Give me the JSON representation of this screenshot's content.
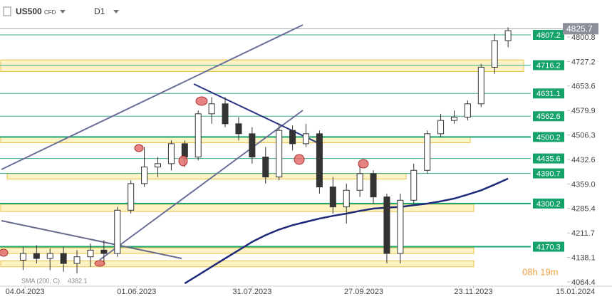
{
  "header": {
    "symbol": "US500",
    "instrument_type": "CFD",
    "timeframe": "D1"
  },
  "countdown": "08h 19m",
  "chart_data": {
    "type": "candlestick",
    "x": [
      "03.04.2023",
      "10.04.2023",
      "17.04.2023",
      "24.04.2023",
      "01.05.2023",
      "08.05.2023",
      "15.05.2023",
      "22.05.2023",
      "29.05.2023",
      "05.06.2023",
      "12.06.2023",
      "19.06.2023",
      "26.06.2023",
      "03.07.2023",
      "10.07.2023",
      "17.07.2023",
      "24.07.2023",
      "31.07.2023",
      "07.08.2023",
      "14.08.2023",
      "21.08.2023",
      "28.08.2023",
      "04.09.2023",
      "11.09.2023",
      "18.09.2023",
      "25.09.2023",
      "02.10.2023",
      "09.10.2023",
      "16.10.2023",
      "23.10.2023",
      "30.10.2023",
      "06.11.2023",
      "13.11.2023",
      "20.11.2023",
      "27.11.2023",
      "04.12.2023",
      "11.12.2023"
    ],
    "open": [
      4130,
      4150,
      4135,
      4150,
      4120,
      4140,
      4160,
      4150,
      4280,
      4360,
      4410,
      4420,
      4480,
      4440,
      4570,
      4600,
      4540,
      4510,
      4440,
      4380,
      4520,
      4480,
      4510,
      4350,
      4290,
      4340,
      4390,
      4320,
      4150,
      4310,
      4400,
      4510,
      4550,
      4560,
      4600,
      4710,
      4790
    ],
    "high": [
      4170,
      4175,
      4165,
      4170,
      4160,
      4180,
      4190,
      4290,
      4370,
      4470,
      4440,
      4490,
      4490,
      4580,
      4620,
      4620,
      4560,
      4530,
      4470,
      4540,
      4535,
      4540,
      4520,
      4380,
      4360,
      4420,
      4400,
      4330,
      4330,
      4420,
      4520,
      4570,
      4580,
      4610,
      4720,
      4810,
      4830
    ],
    "low": [
      4100,
      4120,
      4100,
      4095,
      4090,
      4110,
      4120,
      4140,
      4270,
      4350,
      4380,
      4400,
      4410,
      4430,
      4540,
      4530,
      4490,
      4420,
      4360,
      4370,
      4460,
      4470,
      4330,
      4270,
      4240,
      4320,
      4300,
      4120,
      4120,
      4300,
      4390,
      4500,
      4540,
      4550,
      4590,
      4690,
      4770
    ],
    "close": [
      4150,
      4135,
      4150,
      4120,
      4140,
      4160,
      4150,
      4280,
      4360,
      4410,
      4420,
      4480,
      4440,
      4570,
      4600,
      4540,
      4510,
      4440,
      4380,
      4520,
      4480,
      4510,
      4350,
      4290,
      4340,
      4390,
      4320,
      4150,
      4310,
      4400,
      4510,
      4550,
      4560,
      4600,
      4710,
      4790,
      4820
    ],
    "sma": {
      "name": "SMA (200, C)",
      "value_label": "4382.1",
      "color": "#1f2a7a",
      "values": [
        null,
        null,
        null,
        null,
        null,
        null,
        null,
        null,
        null,
        null,
        null,
        null,
        4060,
        4085,
        4110,
        4135,
        4160,
        4185,
        4205,
        4222,
        4235,
        4245,
        4255,
        4263,
        4270,
        4278,
        4285,
        4288,
        4290,
        4295,
        4300,
        4307,
        4315,
        4327,
        4340,
        4357,
        4375
      ]
    },
    "levels": [
      4807.2,
      4716.2,
      4631.1,
      4562.6,
      4500.2,
      4435.6,
      4390.7,
      4300.2,
      4170.3
    ],
    "last_price": 4825.7,
    "zones": [
      [
        4697,
        4732
      ],
      [
        4483,
        4500
      ],
      [
        4374,
        4391
      ],
      [
        4276,
        4298
      ],
      [
        4150,
        4167
      ],
      [
        4110,
        4128
      ]
    ],
    "ylim": [
      4051.6,
      4912.1
    ],
    "yticks": [
      4064.4,
      4138.1,
      4211.7,
      4285.4,
      {
        "value": 4359,
        "label": "4359.0"
      },
      4432.6,
      4506.3,
      4579.9,
      4653.6,
      4727.2,
      4800.8
    ],
    "xlim": [
      "22.03.2023",
      "03.02.2024"
    ],
    "xticks": [
      "04.04.2023",
      "01.06.2023",
      "31.07.2023",
      "27.09.2023",
      "23.11.2023",
      "15.01.2024"
    ]
  }
}
